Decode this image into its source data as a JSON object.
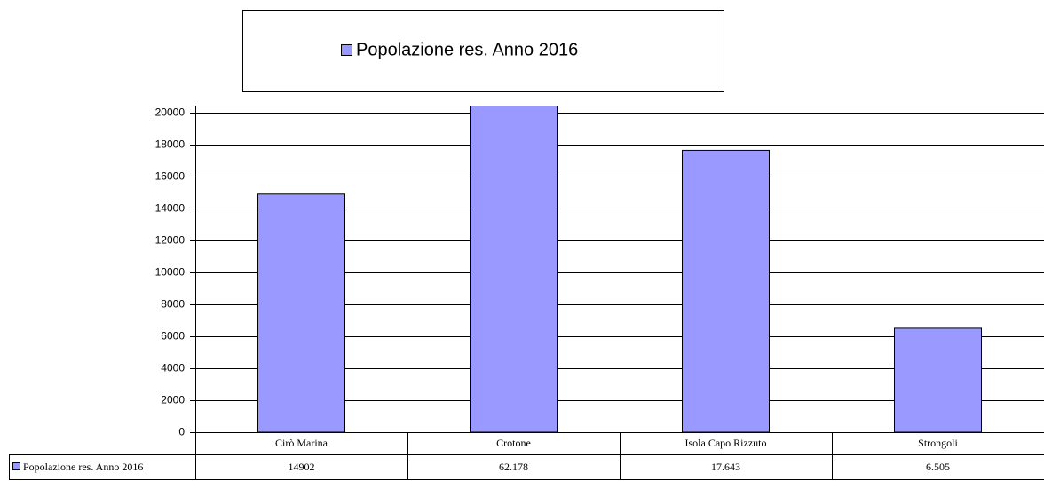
{
  "chart_data": {
    "type": "bar",
    "categories": [
      "Cirò Marina",
      "Crotone",
      "Isola Capo Rizzuto",
      "Strongoli"
    ],
    "series": [
      {
        "name": "Popolazione res. Anno 2016",
        "color": "#9999ff",
        "values": [
          14902,
          62178,
          17643,
          6505
        ],
        "value_labels": [
          "14902",
          "62.178",
          "17.643",
          "6.505"
        ]
      }
    ],
    "ylim": [
      0,
      20000
    ],
    "yticks": [
      0,
      2000,
      4000,
      6000,
      8000,
      10000,
      12000,
      14000,
      16000,
      18000,
      20000
    ],
    "grid": true,
    "legend": "top"
  }
}
